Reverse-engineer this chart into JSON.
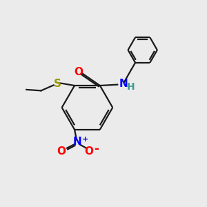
{
  "bg_color": "#ebebeb",
  "bond_color": "#1a1a1a",
  "atom_colors": {
    "O": "#ff0000",
    "N_amide": "#0000ff",
    "N_nitro": "#0000ff",
    "S": "#999900",
    "H": "#3d9b8f",
    "C": "#1a1a1a"
  },
  "figsize": [
    3.0,
    3.0
  ],
  "dpi": 100
}
